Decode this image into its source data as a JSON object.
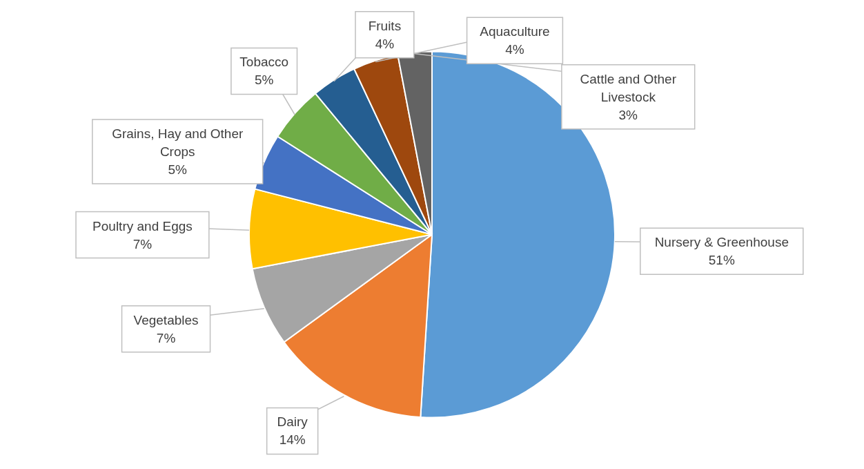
{
  "chart_data": {
    "type": "pie",
    "categories": [
      "Nursery & Greenhouse",
      "Dairy",
      "Vegetables",
      "Poultry and Eggs",
      "Grains, Hay and Other Crops",
      "Tobacco",
      "Fruits",
      "Aquaculture",
      "Cattle and Other Livestock"
    ],
    "values": [
      51,
      14,
      7,
      7,
      5,
      5,
      4,
      4,
      3
    ],
    "value_labels": [
      "51%",
      "14%",
      "7%",
      "7%",
      "5%",
      "5%",
      "4%",
      "4%",
      "3%"
    ],
    "colors": [
      "#5b9bd5",
      "#ed7d31",
      "#a5a5a5",
      "#ffc000",
      "#4472c4",
      "#70ad47",
      "#255e91",
      "#9e480e",
      "#636363"
    ],
    "legend": false
  }
}
